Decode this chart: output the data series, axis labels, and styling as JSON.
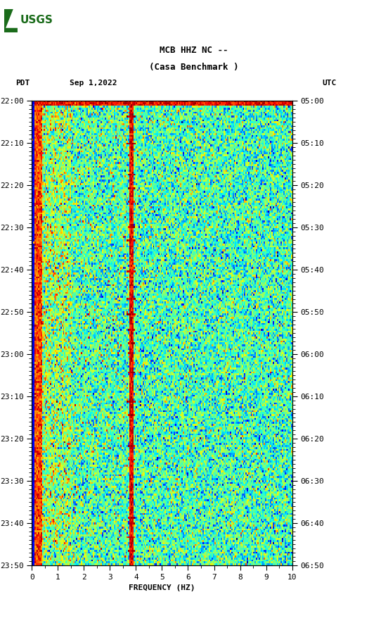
{
  "title_line1": "MCB HHZ NC --",
  "title_line2": "(Casa Benchmark )",
  "date_label": "Sep 1,2022",
  "left_timezone": "PDT",
  "right_timezone": "UTC",
  "left_times": [
    "22:00",
    "22:10",
    "22:20",
    "22:30",
    "22:40",
    "22:50",
    "23:00",
    "23:10",
    "23:20",
    "23:30",
    "23:40",
    "23:50"
  ],
  "right_times": [
    "05:00",
    "05:10",
    "05:20",
    "05:30",
    "05:40",
    "05:50",
    "06:00",
    "06:10",
    "06:20",
    "06:30",
    "06:40",
    "06:50"
  ],
  "freq_min": 0,
  "freq_max": 10,
  "freq_ticks": [
    0,
    1,
    2,
    3,
    4,
    5,
    6,
    7,
    8,
    9,
    10
  ],
  "xlabel": "FREQUENCY (HZ)",
  "fig_width": 5.52,
  "fig_height": 8.92,
  "dpi": 100,
  "colormap": "jet",
  "background_color": "#ffffff",
  "seed": 42,
  "n_time": 240,
  "n_freq": 200,
  "logo_color": "#1a6b1a",
  "title_fontsize": 9,
  "label_fontsize": 8,
  "tick_fontsize": 8,
  "font_family": "monospace"
}
